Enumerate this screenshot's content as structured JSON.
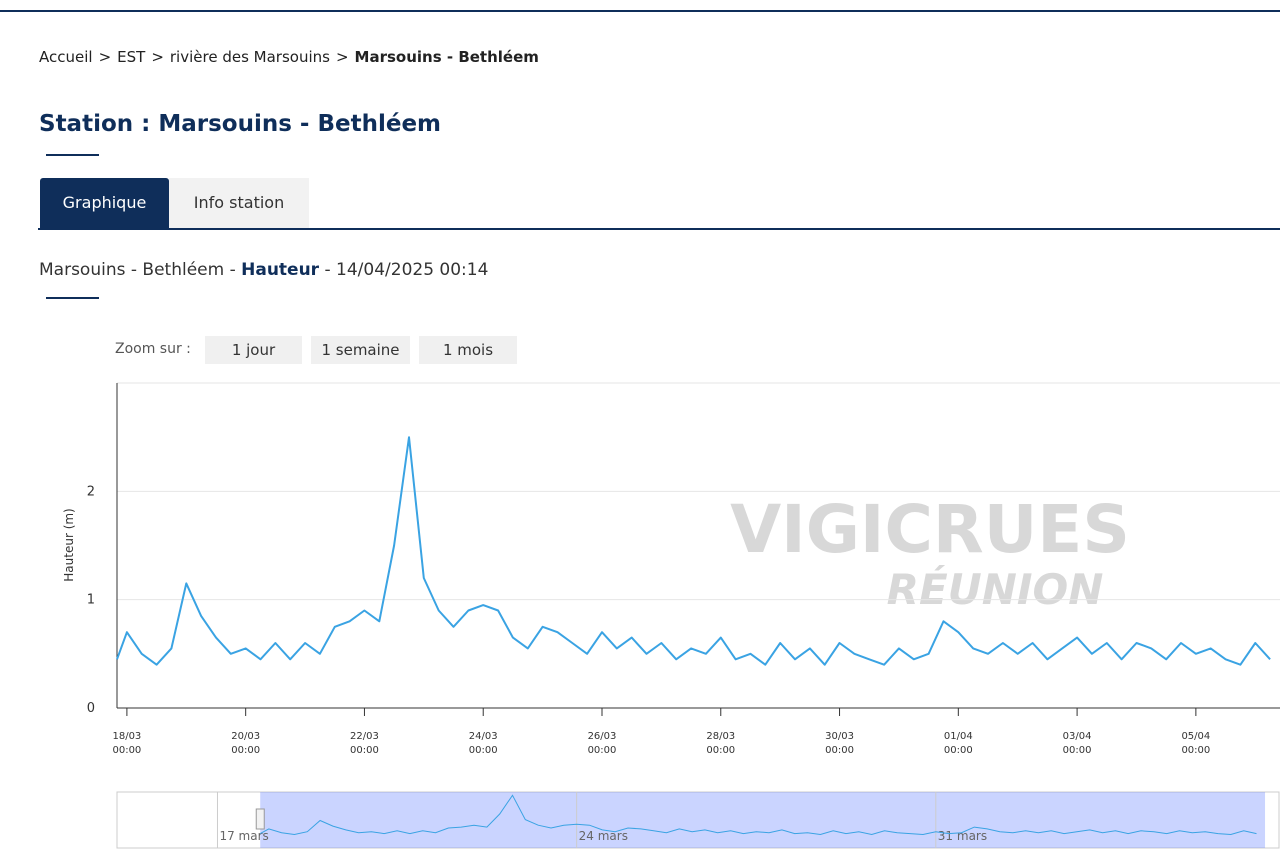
{
  "breadcrumb": {
    "items": [
      "Accueil",
      "EST",
      "rivière des Marsouins",
      "Marsouins - Bethléem"
    ],
    "separator": ">"
  },
  "title": "Station : Marsouins - Bethléem",
  "tabs": [
    "Graphique",
    "Info station"
  ],
  "subtitle": {
    "station": "Marsouins - Bethléem",
    "separator": "-",
    "variable": "Hauteur",
    "datetime": "14/04/2025 00:14"
  },
  "zoom": {
    "label": "Zoom sur :",
    "buttons": [
      "1 jour",
      "1 semaine",
      "1 mois"
    ]
  },
  "watermark": [
    "VIGICRUES",
    "RÉUNION"
  ],
  "chart_data": {
    "type": "line",
    "y_label": "Hauteur (m)",
    "color": "#3aa3e3",
    "x": [
      "17/03 20:00",
      "18/03 00:00",
      "18/03 06:00",
      "18/03 12:00",
      "18/03 18:00",
      "19/03 00:00",
      "19/03 06:00",
      "19/03 12:00",
      "19/03 18:00",
      "20/03 00:00",
      "20/03 06:00",
      "20/03 12:00",
      "20/03 18:00",
      "21/03 00:00",
      "21/03 06:00",
      "21/03 12:00",
      "21/03 18:00",
      "22/03 00:00",
      "22/03 06:00",
      "22/03 12:00",
      "22/03 18:00",
      "23/03 00:00",
      "23/03 06:00",
      "23/03 12:00",
      "23/03 18:00",
      "24/03 00:00",
      "24/03 06:00",
      "24/03 12:00",
      "24/03 18:00",
      "25/03 00:00",
      "25/03 06:00",
      "25/03 12:00",
      "25/03 18:00",
      "26/03 00:00",
      "26/03 06:00",
      "26/03 12:00",
      "26/03 18:00",
      "27/03 00:00",
      "27/03 06:00",
      "27/03 12:00",
      "27/03 18:00",
      "28/03 00:00",
      "28/03 06:00",
      "28/03 12:00",
      "28/03 18:00",
      "29/03 00:00",
      "29/03 06:00",
      "29/03 12:00",
      "29/03 18:00",
      "30/03 00:00",
      "30/03 06:00",
      "30/03 12:00",
      "30/03 18:00",
      "31/03 00:00",
      "31/03 06:00",
      "31/03 12:00",
      "31/03 18:00",
      "01/04 00:00",
      "01/04 06:00",
      "01/04 12:00",
      "01/04 18:00",
      "02/04 00:00",
      "02/04 06:00",
      "02/04 12:00",
      "02/04 18:00",
      "03/04 00:00",
      "03/04 06:00",
      "03/04 12:00",
      "03/04 18:00",
      "04/04 00:00",
      "04/04 06:00",
      "04/04 12:00",
      "04/04 18:00",
      "05/04 00:00",
      "05/04 06:00",
      "05/04 12:00",
      "05/04 18:00",
      "06/04 00:00",
      "06/04 06:00"
    ],
    "values": [
      0.45,
      0.7,
      0.5,
      0.4,
      0.55,
      1.15,
      0.85,
      0.65,
      0.5,
      0.55,
      0.45,
      0.6,
      0.45,
      0.6,
      0.5,
      0.75,
      0.8,
      0.9,
      0.8,
      1.5,
      2.5,
      1.2,
      0.9,
      0.75,
      0.9,
      0.95,
      0.9,
      0.65,
      0.55,
      0.75,
      0.7,
      0.6,
      0.5,
      0.7,
      0.55,
      0.65,
      0.5,
      0.6,
      0.45,
      0.55,
      0.5,
      0.65,
      0.45,
      0.5,
      0.4,
      0.6,
      0.45,
      0.55,
      0.4,
      0.6,
      0.5,
      0.45,
      0.4,
      0.55,
      0.45,
      0.5,
      0.8,
      0.7,
      0.55,
      0.5,
      0.6,
      0.5,
      0.6,
      0.45,
      0.55,
      0.65,
      0.5,
      0.6,
      0.45,
      0.6,
      0.55,
      0.45,
      0.6,
      0.5,
      0.55,
      0.45,
      0.4,
      0.6,
      0.45
    ],
    "xlim": [
      "17/03 20:00",
      "06/04 10:00"
    ],
    "xticks": [
      "18/03 00:00",
      "20/03 00:00",
      "22/03 00:00",
      "24/03 00:00",
      "26/03 00:00",
      "28/03 00:00",
      "30/03 00:00",
      "01/04 00:00",
      "03/04 00:00",
      "05/04 00:00"
    ],
    "ylim": [
      0,
      3
    ],
    "yticks": [
      0,
      1,
      2
    ],
    "grid": true,
    "navigator": {
      "xlim": [
        "15/03 01:00",
        "06/04 17:00"
      ],
      "ticks": [
        {
          "value": "17/03 00:00",
          "label": "17 mars"
        },
        {
          "value": "24/03 00:00",
          "label": "24 mars"
        },
        {
          "value": "31/03 00:00",
          "label": "31 mars"
        }
      ]
    }
  }
}
